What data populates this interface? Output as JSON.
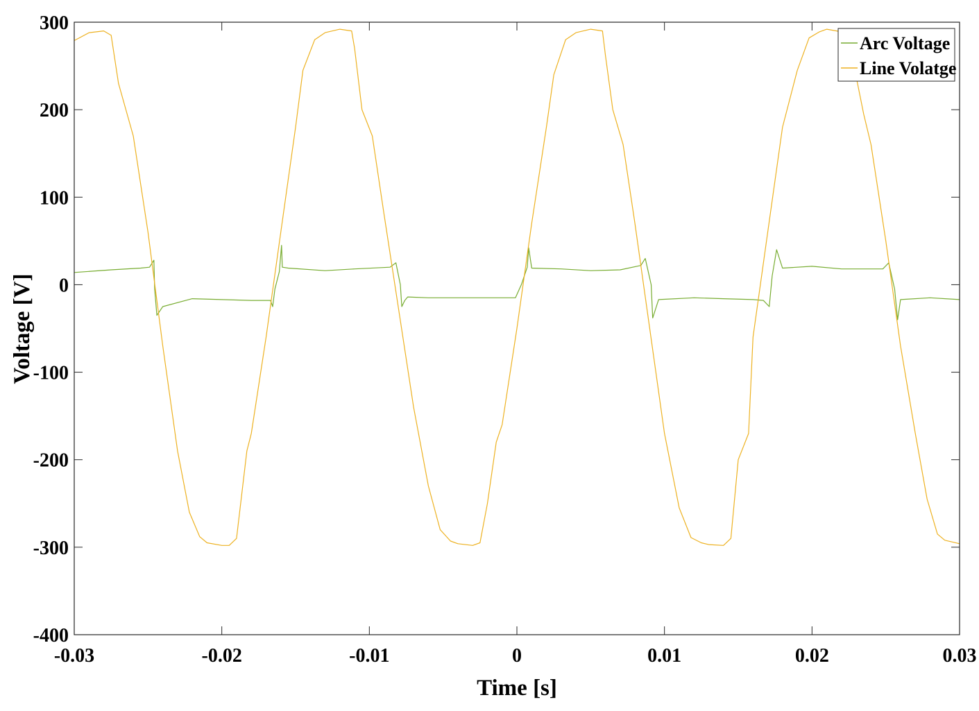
{
  "chart_data": {
    "type": "line",
    "title": "",
    "xlabel": "Time [s]",
    "ylabel": "Voltage [V]",
    "xlim": [
      -0.03,
      0.03
    ],
    "ylim": [
      -400,
      300
    ],
    "xticks": [
      -0.03,
      -0.02,
      -0.01,
      0,
      0.01,
      0.02,
      0.03
    ],
    "xtick_labels": [
      "-0.03",
      "-0.02",
      "-0.01",
      "0",
      "0.01",
      "0.02",
      "0.03"
    ],
    "yticks": [
      300,
      200,
      100,
      0,
      -100,
      -200,
      -300,
      -400
    ],
    "ytick_labels": [
      "300",
      "200",
      "100",
      "0",
      "-100",
      "-200",
      "-300",
      "-400"
    ],
    "grid": false,
    "legend_position": "top-right",
    "series": [
      {
        "name": "Arc Voltage",
        "color": "#77ac30",
        "x": [
          -0.03,
          -0.0275,
          -0.0255,
          -0.0249,
          -0.0246,
          -0.02455,
          -0.0244,
          -0.024,
          -0.022,
          -0.02,
          -0.018,
          -0.0167,
          -0.01655,
          -0.0164,
          -0.0161,
          -0.01595,
          -0.0159,
          -0.0155,
          -0.013,
          -0.011,
          -0.0086,
          -0.0082,
          -0.0079,
          -0.0078,
          -0.0076,
          -0.0074,
          -0.006,
          -0.004,
          -0.002,
          -0.0001,
          0.0003,
          0.0007,
          0.0008,
          0.001,
          0.003,
          0.005,
          0.007,
          0.0084,
          0.0087,
          0.0091,
          0.0092,
          0.0096,
          0.012,
          0.014,
          0.016,
          0.0167,
          0.0171,
          0.0173,
          0.0176,
          0.018,
          0.02,
          0.022,
          0.0248,
          0.0252,
          0.0256,
          0.0258,
          0.026,
          0.028,
          0.03
        ],
        "y": [
          14,
          17,
          19,
          20,
          28,
          -5,
          -35,
          -25,
          -16,
          -17,
          -18,
          -18,
          -25,
          -5,
          15,
          45,
          20,
          19,
          16,
          18,
          20,
          25,
          0,
          -25,
          -18,
          -14,
          -15,
          -15,
          -15,
          -15,
          0,
          20,
          42,
          19,
          18,
          16,
          17,
          22,
          30,
          0,
          -38,
          -17,
          -15,
          -16,
          -17,
          -18,
          -25,
          10,
          40,
          19,
          21,
          18,
          18,
          25,
          -5,
          -40,
          -17,
          -15,
          -17
        ]
      },
      {
        "name": "Line Volatge",
        "color": "#edb120",
        "x": [
          -0.03,
          -0.029,
          -0.028,
          -0.0275,
          -0.027,
          -0.026,
          -0.025,
          -0.024,
          -0.023,
          -0.0222,
          -0.0215,
          -0.021,
          -0.02,
          -0.0195,
          -0.019,
          -0.0183,
          -0.018,
          -0.017,
          -0.016,
          -0.015,
          -0.0145,
          -0.0137,
          -0.013,
          -0.012,
          -0.0112,
          -0.011,
          -0.0105,
          -0.0098,
          -0.009,
          -0.008,
          -0.007,
          -0.006,
          -0.0052,
          -0.0045,
          -0.004,
          -0.003,
          -0.0025,
          -0.002,
          -0.0014,
          -0.001,
          0,
          0.001,
          0.002,
          0.0025,
          0.0033,
          0.004,
          0.005,
          0.0058,
          0.006,
          0.0065,
          0.0072,
          0.008,
          0.009,
          0.01,
          0.011,
          0.0118,
          0.0125,
          0.013,
          0.014,
          0.0145,
          0.015,
          0.0157,
          0.016,
          0.017,
          0.018,
          0.019,
          0.0198,
          0.0205,
          0.021,
          0.022,
          0.0227,
          0.0235,
          0.024,
          0.025,
          0.026,
          0.027,
          0.0278,
          0.0285,
          0.029,
          0.03
        ],
        "y": [
          279,
          288,
          290,
          285,
          230,
          170,
          60,
          -70,
          -190,
          -260,
          -288,
          -295,
          -298,
          -298,
          -290,
          -190,
          -170,
          -60,
          60,
          180,
          245,
          280,
          288,
          292,
          290,
          270,
          200,
          170,
          80,
          -30,
          -140,
          -230,
          -280,
          -293,
          -296,
          -298,
          -295,
          -250,
          -180,
          -160,
          -50,
          70,
          180,
          240,
          280,
          288,
          292,
          290,
          262,
          200,
          160,
          70,
          -50,
          -170,
          -255,
          -289,
          -295,
          -297,
          -298,
          -290,
          -200,
          -170,
          -60,
          60,
          180,
          245,
          282,
          289,
          292,
          289,
          262,
          195,
          160,
          50,
          -70,
          -170,
          -245,
          -285,
          -292,
          -296
        ]
      }
    ]
  }
}
